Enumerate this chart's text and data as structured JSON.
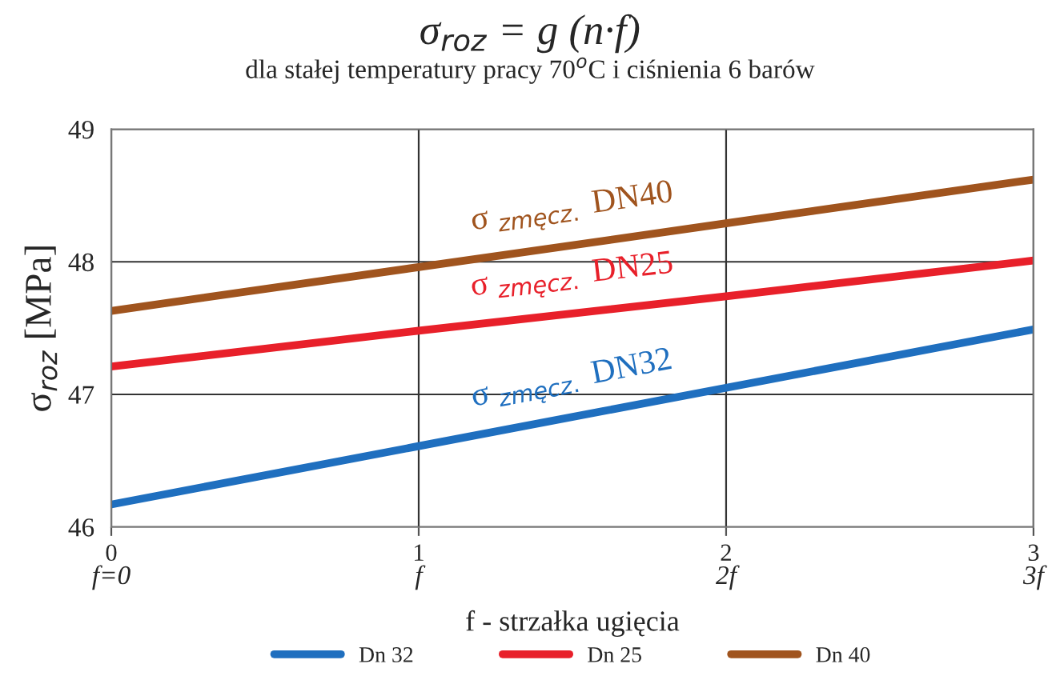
{
  "chart_data": {
    "type": "line",
    "title": "σ$_{roz}$ = g (n·f)",
    "subtitle": "dla stałej temperatury pracy 70$^{o}$C i ciśnienia 6 barów",
    "xlabel": "f - strzałka ugięcia",
    "ylabel": "σ$_{roz}$ [MPa]",
    "x": [
      0,
      1,
      2,
      3
    ],
    "series": [
      {
        "name": "Dn 32",
        "color": "#1f6fbf",
        "values": [
          46.17,
          46.61,
          47.05,
          47.49
        ]
      },
      {
        "name": "Dn 25",
        "color": "#e8202a",
        "values": [
          47.21,
          47.48,
          47.74,
          48.01
        ]
      },
      {
        "name": "Dn 40",
        "color": "#a0541e",
        "values": [
          47.63,
          47.96,
          48.29,
          48.62
        ]
      }
    ],
    "annotations": [
      "σ $_{zmęcz.}$ DN32",
      "σ $_{zmęcz.}$ DN25",
      "σ $_{zmęcz.}$ DN40"
    ],
    "xlim": [
      0,
      3
    ],
    "ylim": [
      46,
      49
    ],
    "xticks": [
      0,
      1,
      2,
      3
    ],
    "x2lim": [
      0,
      3
    ],
    "x2ticks": [
      {
        "value": 0,
        "label": "f=0"
      },
      {
        "value": 1,
        "label": "f"
      },
      {
        "value": 2,
        "label": "2f"
      },
      {
        "value": 3,
        "label": "3f"
      }
    ],
    "yticks": [
      46,
      47,
      48,
      49
    ],
    "grid": true,
    "legend": "bottom",
    "marker": "none",
    "line_style": "solid"
  }
}
